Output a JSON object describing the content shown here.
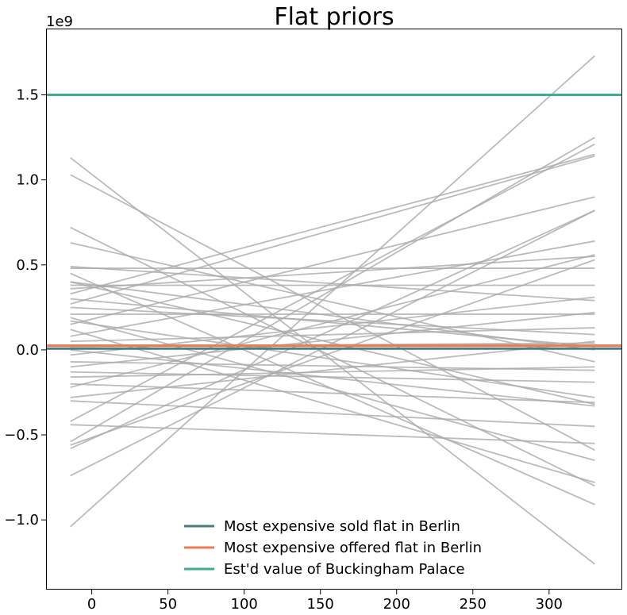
{
  "chart_data": {
    "type": "line",
    "title": "Flat priors",
    "xlabel": "",
    "ylabel": "",
    "y_offset_label": "1e9",
    "xlim": [
      -30,
      348
    ],
    "ylim": [
      -1.41,
      1.89
    ],
    "xticks": [
      0,
      50,
      100,
      150,
      200,
      250,
      300
    ],
    "xtick_labels": [
      "0",
      "50",
      "100",
      "150",
      "200",
      "250",
      "300"
    ],
    "yticks": [
      -1.0,
      -0.5,
      0.0,
      0.5,
      1.0,
      1.5
    ],
    "ytick_labels": [
      "−1.0",
      "−0.5",
      "0.0",
      "0.5",
      "1.0",
      "1.5"
    ],
    "grid": false,
    "legend_position": "bottom-center",
    "prior_lines": {
      "x": [
        -14,
        330
      ],
      "color": "#aaaaaa",
      "y_pairs": [
        [
          -1.04,
          1.73
        ],
        [
          1.13,
          -1.26
        ],
        [
          1.03,
          -0.59
        ],
        [
          0.72,
          -0.8
        ],
        [
          0.63,
          -0.07
        ],
        [
          -0.74,
          0.82
        ],
        [
          0.49,
          0.29
        ],
        [
          0.48,
          0.48
        ],
        [
          0.45,
          -0.91
        ],
        [
          0.4,
          -0.32
        ],
        [
          0.38,
          0.38
        ],
        [
          0.36,
          0.55
        ],
        [
          0.33,
          1.15
        ],
        [
          0.3,
          0.02
        ],
        [
          0.25,
          0.09
        ],
        [
          0.21,
          0.21
        ],
        [
          0.19,
          -0.65
        ],
        [
          0.15,
          0.9
        ],
        [
          0.12,
          -0.78
        ],
        [
          0.08,
          0.64
        ],
        [
          0.05,
          0.13
        ],
        [
          0.0,
          -0.33
        ],
        [
          -0.03,
          0.31
        ],
        [
          -0.07,
          -0.12
        ],
        [
          -0.1,
          0.22
        ],
        [
          -0.16,
          -0.1
        ],
        [
          -0.2,
          -0.31
        ],
        [
          -0.22,
          0.56
        ],
        [
          -0.3,
          -0.45
        ],
        [
          -0.42,
          1.21
        ],
        [
          -0.44,
          -0.55
        ],
        [
          -0.54,
          1.25
        ],
        [
          -0.56,
          0.53
        ],
        [
          -0.58,
          0.82
        ],
        [
          0.4,
          0.0
        ],
        [
          -0.28,
          0.05
        ],
        [
          0.27,
          1.14
        ],
        [
          0.17,
          -0.28
        ],
        [
          -0.13,
          -0.19
        ],
        [
          0.02,
          0.04
        ]
      ]
    },
    "series": [
      {
        "name": "Most expensive sold flat in Berlin",
        "type": "hline",
        "y": 0.0075,
        "color": "#4a7c80"
      },
      {
        "name": "Most expensive offered flat in Berlin",
        "type": "hline",
        "y": 0.025,
        "color": "#ee7b52"
      },
      {
        "name": "Est'd value of Buckingham Palace",
        "type": "hline",
        "y": 1.5,
        "color": "#3db08a"
      }
    ]
  }
}
